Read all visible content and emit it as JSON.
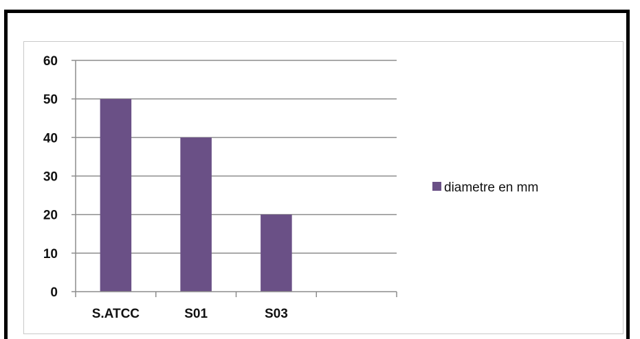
{
  "chart_data": {
    "type": "bar",
    "title": "",
    "xlabel": "",
    "ylabel": "",
    "categories": [
      "S.ATCC",
      "S01",
      "S03",
      ""
    ],
    "series": [
      {
        "name": "diametre en mm",
        "values": [
          50,
          40,
          20,
          null
        ],
        "color": "#6a5086"
      }
    ],
    "ylim": [
      0,
      60
    ],
    "yticks": [
      0,
      10,
      20,
      30,
      40,
      50,
      60
    ],
    "grid": true,
    "legend": "right"
  }
}
